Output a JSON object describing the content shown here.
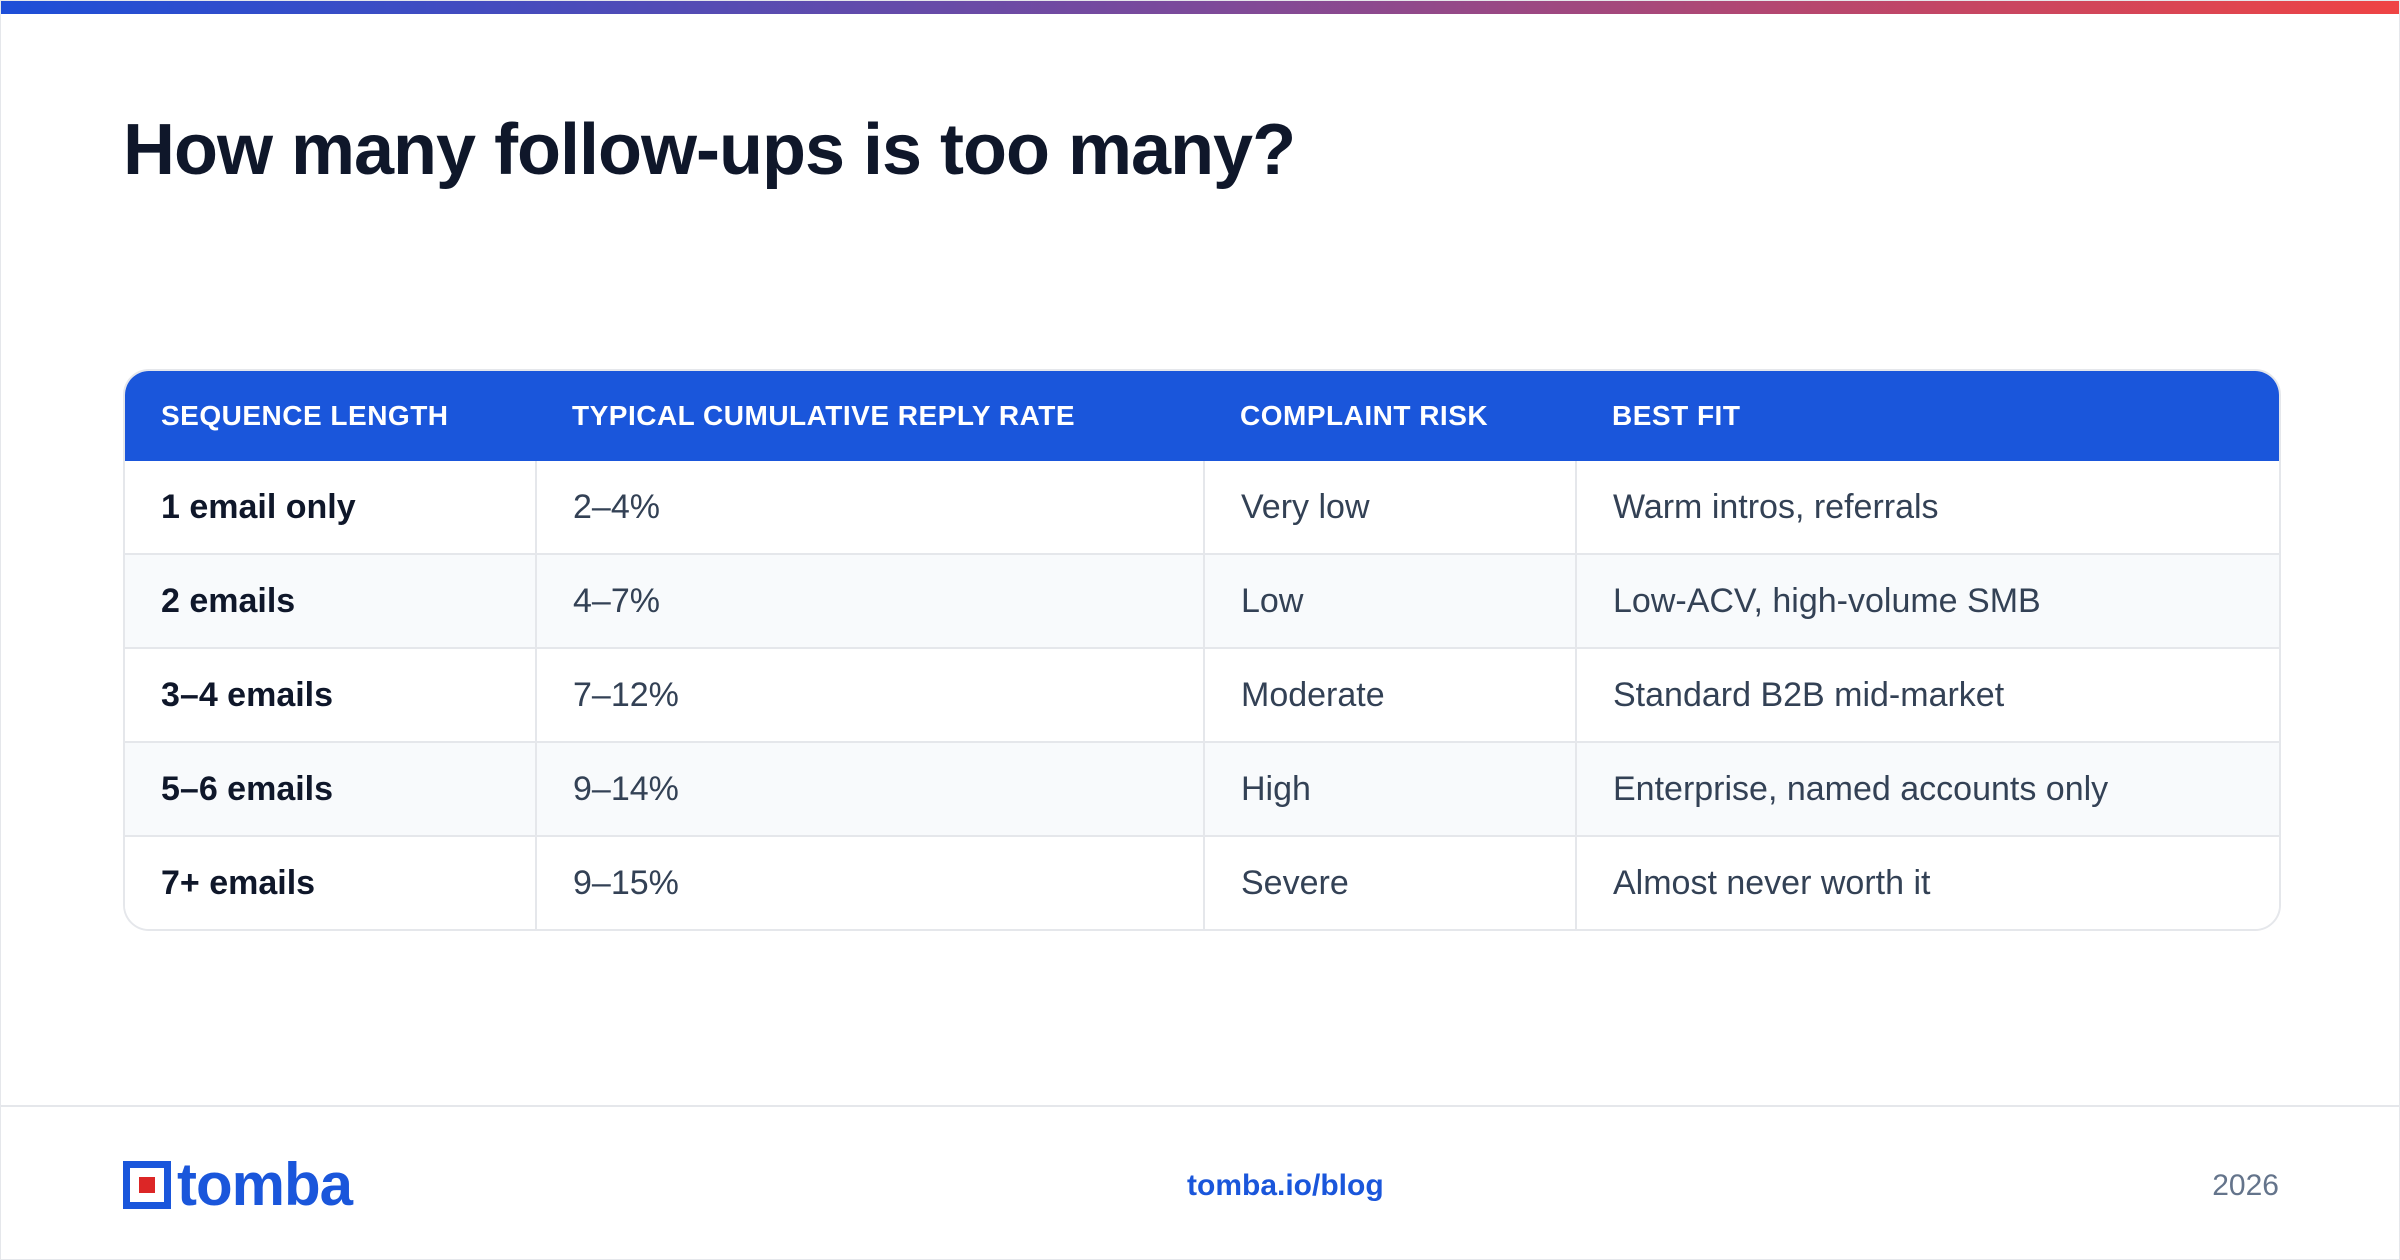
{
  "title": "How many follow-ups is too many?",
  "table": {
    "headers": [
      "SEQUENCE LENGTH",
      "TYPICAL CUMULATIVE REPLY RATE",
      "COMPLAINT RISK",
      "BEST FIT"
    ],
    "rows": [
      {
        "length": "1 email only",
        "reply_rate": "2–4%",
        "risk": "Very low",
        "best_fit": "Warm intros, referrals"
      },
      {
        "length": "2 emails",
        "reply_rate": "4–7%",
        "risk": "Low",
        "best_fit": "Low-ACV, high-volume SMB"
      },
      {
        "length": "3–4 emails",
        "reply_rate": "7–12%",
        "risk": "Moderate",
        "best_fit": "Standard B2B mid-market"
      },
      {
        "length": "5–6 emails",
        "reply_rate": "9–14%",
        "risk": "High",
        "best_fit": "Enterprise, named accounts only"
      },
      {
        "length": "7+ emails",
        "reply_rate": "9–15%",
        "risk": "Severe",
        "best_fit": "Almost never worth it"
      }
    ]
  },
  "footer": {
    "logo_text": "tomba",
    "link": "tomba.io/blog",
    "year": "2026"
  },
  "colors": {
    "accent": "#1a56db",
    "logo_square": "#dc2626",
    "gradient_start": "#1d4ed8",
    "gradient_end": "#ef4444"
  }
}
